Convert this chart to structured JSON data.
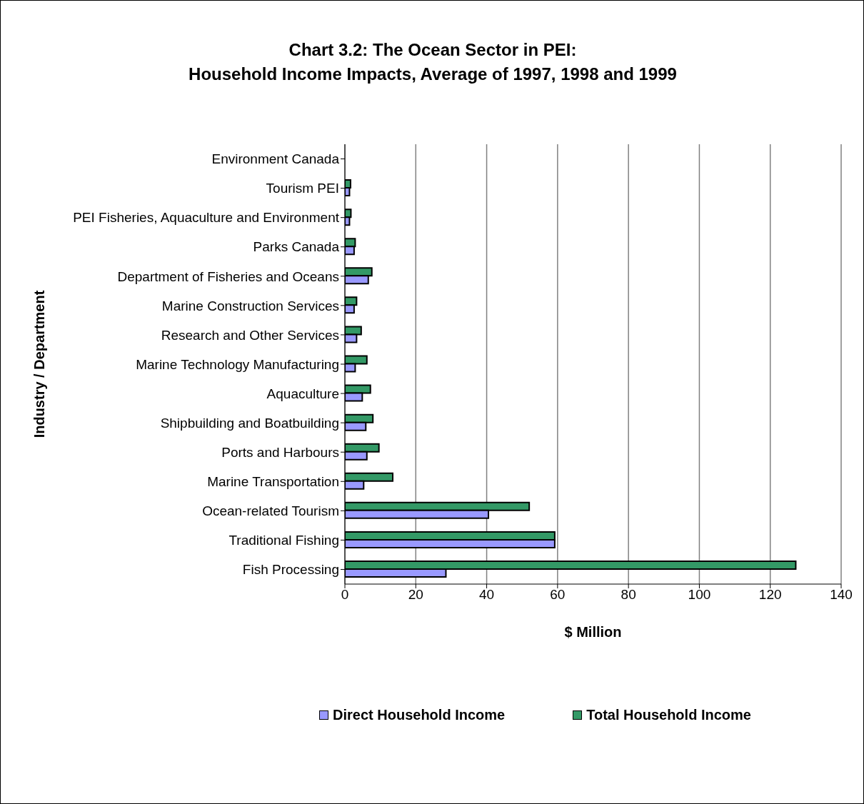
{
  "chart_data": {
    "type": "bar",
    "orientation": "horizontal",
    "title": "Chart 3.2:  The Ocean Sector in PEI:\nHousehold Income Impacts, Average of 1997, 1998 and 1999",
    "xlabel": "$ Million",
    "ylabel": "Industry / Department",
    "categories": [
      "Environment Canada",
      "Tourism PEI",
      "PEI Fisheries, Aquaculture and Environment",
      "Parks Canada",
      "Department of Fisheries and Oceans",
      "Marine Construction Services",
      "Research and Other Services",
      "Marine Technology Manufacturing",
      "Aquaculture",
      "Shipbuilding and Boatbuilding",
      "Ports and Harbours",
      "Marine Transportation",
      "Ocean-related Tourism",
      "Traditional Fishing",
      "Fish Processing"
    ],
    "series": [
      {
        "name": "Direct Household Income",
        "color": "#9999ff",
        "values": [
          null,
          1.3,
          1.3,
          2.6,
          6.6,
          2.6,
          3.3,
          2.9,
          4.9,
          5.9,
          6.2,
          5.3,
          40.5,
          59.2,
          28.5
        ]
      },
      {
        "name": "Total Household Income",
        "color": "#339966",
        "values": [
          null,
          1.6,
          1.7,
          2.9,
          7.6,
          3.3,
          4.6,
          6.2,
          7.2,
          7.9,
          9.6,
          13.5,
          52,
          59.2,
          127.2
        ]
      }
    ],
    "xlim": [
      0,
      140
    ],
    "xticks": [
      0,
      20,
      40,
      60,
      80,
      100,
      120,
      140
    ],
    "grid": "x",
    "legend": "bottom"
  }
}
